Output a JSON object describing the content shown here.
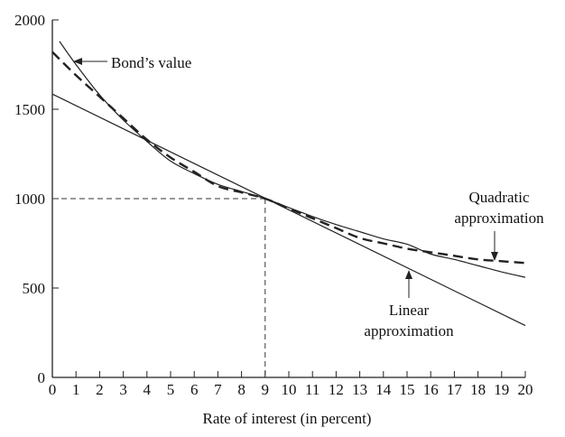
{
  "chart_data": {
    "type": "line",
    "title": "",
    "xlabel": "Rate of interest (in percent)",
    "ylabel": "",
    "xlim": [
      0,
      20
    ],
    "ylim": [
      0,
      2000
    ],
    "x_ticks": [
      "0",
      "1",
      "2",
      "3",
      "4",
      "5",
      "6",
      "7",
      "8",
      "9",
      "10",
      "11",
      "12",
      "13",
      "14",
      "15",
      "16",
      "17",
      "18",
      "19",
      "20"
    ],
    "y_ticks": [
      "0",
      "500",
      "1000",
      "1500",
      "2000"
    ],
    "grid": false,
    "series": [
      {
        "name": "Bond's value",
        "style": "solid",
        "x": [
          0.3,
          1,
          2,
          3,
          4,
          5,
          6,
          7,
          8,
          9,
          10,
          11,
          12,
          13,
          14,
          15,
          16,
          17,
          18,
          19,
          20
        ],
        "y": [
          1880,
          1750,
          1580,
          1440,
          1320,
          1210,
          1140,
          1080,
          1040,
          1000,
          950,
          900,
          855,
          815,
          775,
          745,
          690,
          660,
          625,
          590,
          560
        ]
      },
      {
        "name": "Quadratic approximation",
        "style": "dashed",
        "x": [
          0,
          1,
          2,
          3,
          4,
          5,
          6,
          7,
          8,
          9,
          10,
          11,
          12,
          13,
          14,
          15,
          16,
          17,
          18,
          19,
          20
        ],
        "y": [
          1820,
          1690,
          1570,
          1450,
          1330,
          1230,
          1150,
          1070,
          1035,
          1000,
          945,
          890,
          835,
          780,
          750,
          720,
          700,
          680,
          660,
          650,
          640
        ]
      },
      {
        "name": "Linear approximation",
        "style": "solid",
        "x": [
          0,
          20
        ],
        "y": [
          1585,
          290
        ]
      }
    ],
    "reference_lines": [
      {
        "x": [
          0,
          9
        ],
        "y": [
          1000,
          1000
        ],
        "style": "dashed"
      },
      {
        "x": [
          9,
          9
        ],
        "y": [
          1000,
          0
        ],
        "style": "dashed"
      }
    ],
    "annotations": [
      {
        "text": "Bond’s value"
      },
      {
        "text": "Quadratic"
      },
      {
        "text": "approximation"
      },
      {
        "text": "Linear"
      },
      {
        "text": "approximation"
      }
    ]
  }
}
